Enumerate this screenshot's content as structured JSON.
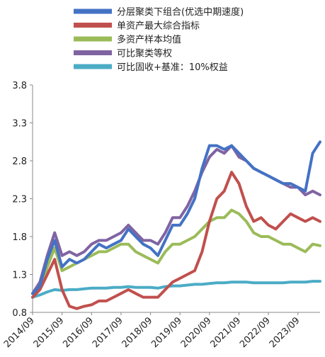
{
  "chart_data": {
    "type": "line",
    "ylim": [
      0.8,
      3.8
    ],
    "yticks": [
      "0.8",
      "1.3",
      "1.8",
      "2.3",
      "2.8",
      "3.3",
      "3.8"
    ],
    "xticks": [
      "2014/09",
      "2015/09",
      "2016/09",
      "2017/09",
      "2018/09",
      "2019/09",
      "2020/09",
      "2021/09",
      "2022/09",
      "2023/09"
    ],
    "grid": "none",
    "legend_position": "top",
    "x_dates": [
      "2014/09",
      "2014/12",
      "2015/03",
      "2015/06",
      "2015/09",
      "2015/12",
      "2016/03",
      "2016/06",
      "2016/09",
      "2016/12",
      "2017/03",
      "2017/06",
      "2017/09",
      "2017/12",
      "2018/03",
      "2018/06",
      "2018/09",
      "2018/12",
      "2019/03",
      "2019/06",
      "2019/09",
      "2019/12",
      "2020/03",
      "2020/06",
      "2020/09",
      "2020/12",
      "2021/03",
      "2021/06",
      "2021/09",
      "2021/12",
      "2022/03",
      "2022/06",
      "2022/09",
      "2022/12",
      "2023/03",
      "2023/06",
      "2023/09",
      "2023/12",
      "2024/03",
      "2024/06"
    ],
    "series": [
      {
        "name": "分层聚类下组合(优选中期速度)",
        "color": "#4472C4",
        "values": [
          1.05,
          1.15,
          1.5,
          1.75,
          1.4,
          1.5,
          1.45,
          1.5,
          1.6,
          1.7,
          1.65,
          1.7,
          1.75,
          1.9,
          1.8,
          1.7,
          1.65,
          1.55,
          1.75,
          1.95,
          1.95,
          2.1,
          2.3,
          2.7,
          3.0,
          3.0,
          2.95,
          3.0,
          2.9,
          2.8,
          2.7,
          2.65,
          2.6,
          2.55,
          2.5,
          2.5,
          2.45,
          2.4,
          2.9,
          3.05
        ]
      },
      {
        "name": "单资产最大综合指标",
        "color": "#C0504D",
        "values": [
          1.0,
          1.1,
          1.3,
          1.5,
          1.1,
          0.88,
          0.85,
          0.88,
          0.9,
          0.95,
          0.95,
          1.0,
          1.05,
          1.1,
          1.05,
          1.0,
          1.0,
          1.0,
          1.1,
          1.2,
          1.25,
          1.3,
          1.35,
          1.6,
          2.0,
          2.3,
          2.4,
          2.65,
          2.5,
          2.2,
          2.0,
          2.05,
          1.95,
          1.9,
          2.0,
          2.1,
          2.05,
          2.0,
          2.05,
          2.0
        ]
      },
      {
        "name": "多资产样本均值",
        "color": "#9BBB59",
        "values": [
          1.05,
          1.1,
          1.4,
          1.65,
          1.35,
          1.4,
          1.45,
          1.5,
          1.55,
          1.6,
          1.6,
          1.65,
          1.7,
          1.7,
          1.6,
          1.55,
          1.5,
          1.45,
          1.6,
          1.7,
          1.7,
          1.75,
          1.8,
          1.9,
          2.0,
          2.05,
          2.05,
          2.15,
          2.1,
          2.0,
          1.85,
          1.8,
          1.8,
          1.75,
          1.7,
          1.7,
          1.65,
          1.6,
          1.7,
          1.68
        ]
      },
      {
        "name": "可比聚类等权",
        "color": "#8064A2",
        "values": [
          1.05,
          1.2,
          1.55,
          1.85,
          1.55,
          1.6,
          1.55,
          1.6,
          1.7,
          1.75,
          1.75,
          1.8,
          1.85,
          1.95,
          1.85,
          1.75,
          1.75,
          1.7,
          1.85,
          2.05,
          2.05,
          2.2,
          2.4,
          2.65,
          2.85,
          2.95,
          2.9,
          3.0,
          2.85,
          2.8,
          2.7,
          2.65,
          2.6,
          2.55,
          2.5,
          2.45,
          2.45,
          2.35,
          2.4,
          2.35
        ]
      },
      {
        "name": "可比固收+基准：10%权益",
        "color": "#4BACC6",
        "values": [
          1.0,
          1.03,
          1.07,
          1.1,
          1.09,
          1.1,
          1.1,
          1.11,
          1.12,
          1.12,
          1.12,
          1.13,
          1.13,
          1.14,
          1.13,
          1.13,
          1.13,
          1.12,
          1.14,
          1.15,
          1.15,
          1.16,
          1.17,
          1.17,
          1.18,
          1.19,
          1.19,
          1.2,
          1.2,
          1.2,
          1.19,
          1.19,
          1.19,
          1.19,
          1.19,
          1.2,
          1.2,
          1.2,
          1.21,
          1.21
        ]
      }
    ]
  }
}
